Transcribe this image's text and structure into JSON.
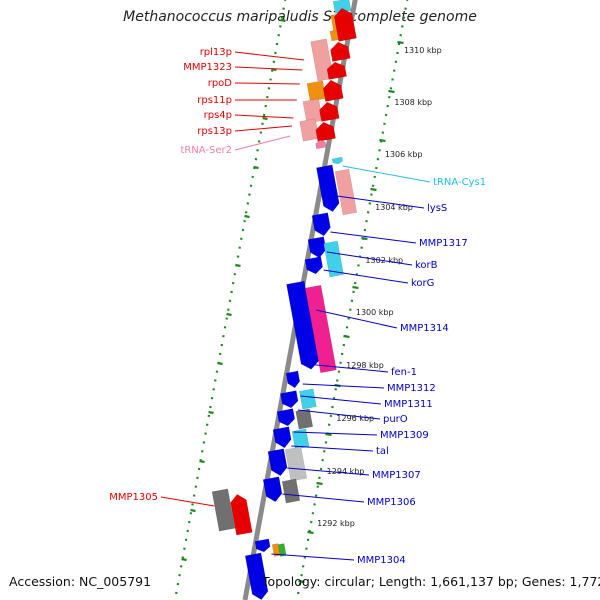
{
  "title": "Methanococcus maripaludis S2, complete genome",
  "footer": {
    "accession": "Accession: NC_005791",
    "summary": "Topology: circular; Length: 1,661,137 bp; Genes: 1,772"
  },
  "colors": {
    "backbone": "#8a8a8a",
    "tick": "#1e8a1e",
    "minus_strand_gene": "#e60000",
    "plus_strand_gene": "#0000e6",
    "trna": "#40d0e8",
    "trna_minus": "#f080a0",
    "magenta": "#f02090",
    "salmon": "#f0a0a0",
    "orange": "#f09010",
    "gray": "#707070",
    "silver": "#c0c0c0"
  },
  "scale_labels": [
    "1310 kbp",
    "1308 kbp",
    "1306 kbp",
    "1304 kbp",
    "1302 kbp",
    "1300 kbp",
    "1298 kbp",
    "1296 kbp",
    "1294 kbp",
    "1292 kbp"
  ],
  "left_gene_labels": [
    "rpl13p",
    "MMP1323",
    "rpoD",
    "rps11p",
    "rps4p",
    "rps13p",
    "tRNA-Ser2",
    "MMP1305"
  ],
  "right_gene_labels": [
    "tRNA-Cys1",
    "lysS",
    "MMP1317",
    "korB",
    "korG",
    "MMP1314",
    "fen-1",
    "MMP1312",
    "MMP1311",
    "purO",
    "MMP1309",
    "tal",
    "MMP1307",
    "MMP1306",
    "MMP1304"
  ]
}
